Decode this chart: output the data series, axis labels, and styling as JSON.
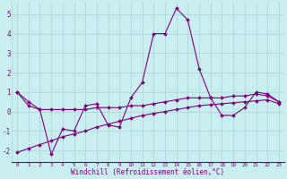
{
  "xlabel": "Windchill (Refroidissement éolien,°C)",
  "background_color": "#c8eef0",
  "grid_color": "#aad4d8",
  "line_color": "#800080",
  "hours": [
    0,
    1,
    2,
    3,
    4,
    5,
    6,
    7,
    8,
    9,
    10,
    11,
    12,
    13,
    14,
    15,
    16,
    17,
    18,
    19,
    20,
    21,
    22,
    23
  ],
  "windchill": [
    1.0,
    0.5,
    0.1,
    -2.2,
    -0.9,
    -1.0,
    0.3,
    0.4,
    -0.7,
    -0.8,
    0.7,
    1.5,
    4.0,
    4.0,
    5.3,
    4.7,
    2.2,
    0.7,
    -0.2,
    -0.2,
    0.2,
    1.0,
    0.9,
    0.5
  ],
  "trend1": [
    1.0,
    0.3,
    0.1,
    0.1,
    0.1,
    0.1,
    0.1,
    0.2,
    0.2,
    0.2,
    0.3,
    0.3,
    0.4,
    0.5,
    0.6,
    0.7,
    0.7,
    0.7,
    0.7,
    0.8,
    0.8,
    0.9,
    0.8,
    0.5
  ],
  "trend2": [
    -2.1,
    -1.9,
    -1.7,
    -1.5,
    -1.3,
    -1.15,
    -1.0,
    -0.8,
    -0.65,
    -0.5,
    -0.35,
    -0.2,
    -0.1,
    0.0,
    0.1,
    0.2,
    0.3,
    0.35,
    0.4,
    0.45,
    0.5,
    0.55,
    0.6,
    0.4
  ],
  "ylim": [
    -2.6,
    5.6
  ],
  "yticks": [
    -2,
    -1,
    0,
    1,
    2,
    3,
    4,
    5
  ],
  "xtick_fontsize": 4.2,
  "ytick_fontsize": 5.5,
  "xlabel_fontsize": 5.5
}
